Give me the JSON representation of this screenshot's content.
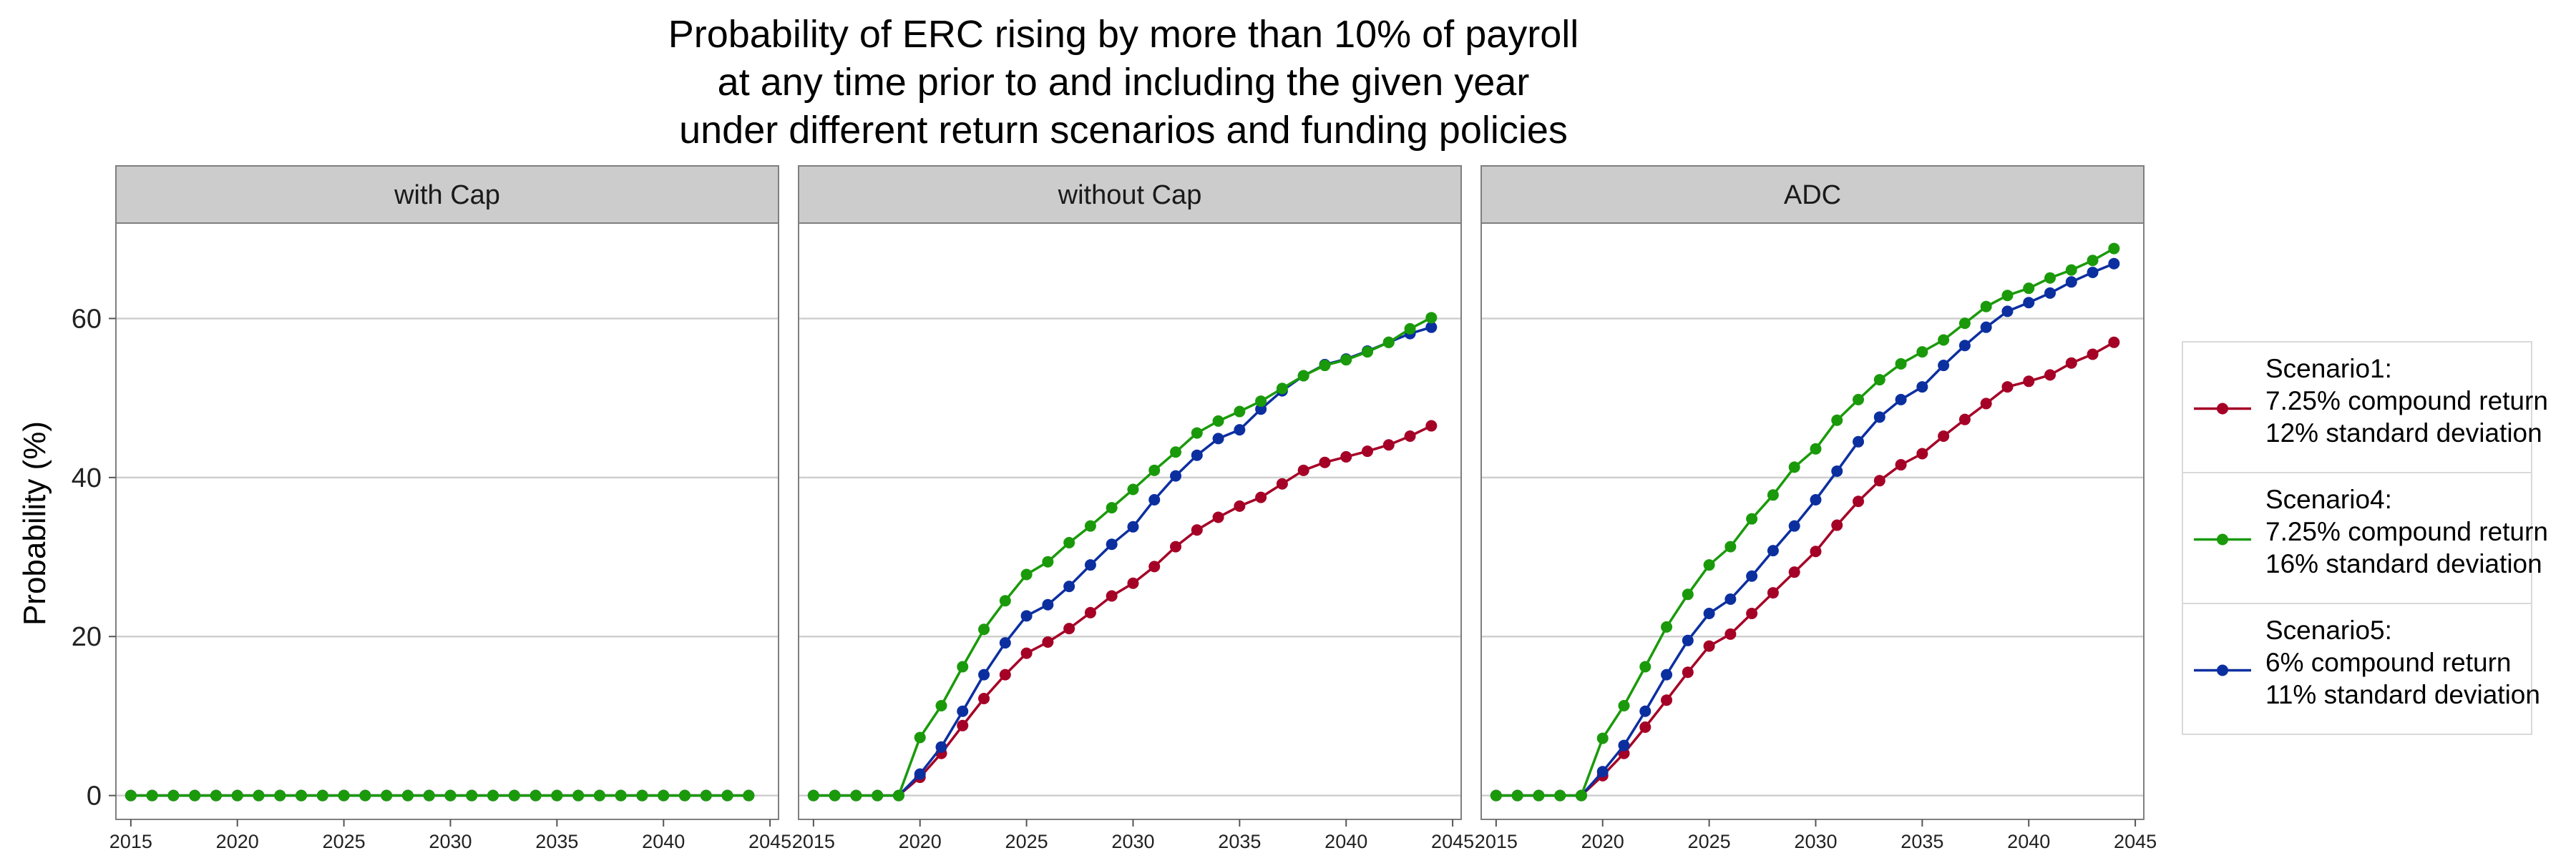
{
  "chart_data": {
    "type": "line",
    "title": [
      "Probability of ERC rising by more than 10% of payroll",
      "at any time prior to and including the given year",
      "under different return scenarios and funding policies"
    ],
    "ylabel": "Probability (%)",
    "xlabel": "",
    "xlim": [
      2014.3,
      2045.4
    ],
    "ylim": [
      -3,
      72
    ],
    "x_ticks": [
      2015,
      2020,
      2025,
      2030,
      2035,
      2040,
      2045
    ],
    "y_ticks": [
      0,
      20,
      40,
      60
    ],
    "x": [
      2015,
      2016,
      2017,
      2018,
      2019,
      2020,
      2021,
      2022,
      2023,
      2024,
      2025,
      2026,
      2027,
      2028,
      2029,
      2030,
      2031,
      2032,
      2033,
      2034,
      2035,
      2036,
      2037,
      2038,
      2039,
      2040,
      2041,
      2042,
      2043,
      2044
    ],
    "panels": [
      {
        "label": "with Cap",
        "series": [
          {
            "name": "Scenario1",
            "color": "#a50026",
            "values": [
              0,
              0,
              0,
              0,
              0,
              0,
              0,
              0,
              0,
              0,
              0,
              0,
              0,
              0,
              0,
              0,
              0,
              0,
              0,
              0,
              0,
              0,
              0,
              0,
              0,
              0,
              0,
              0,
              0,
              0
            ]
          },
          {
            "name": "Scenario5",
            "color": "#0c2fa0",
            "values": [
              0,
              0,
              0,
              0,
              0,
              0,
              0,
              0,
              0,
              0,
              0,
              0,
              0,
              0,
              0,
              0,
              0,
              0,
              0,
              0,
              0,
              0,
              0,
              0,
              0,
              0,
              0,
              0,
              0,
              0
            ]
          },
          {
            "name": "Scenario4",
            "color": "#1a9a0a",
            "values": [
              0,
              0,
              0,
              0,
              0,
              0,
              0,
              0,
              0,
              0,
              0,
              0,
              0,
              0,
              0,
              0,
              0,
              0,
              0,
              0,
              0,
              0,
              0,
              0,
              0,
              0,
              0,
              0,
              0,
              0
            ]
          }
        ]
      },
      {
        "label": "without Cap",
        "series": [
          {
            "name": "Scenario1",
            "color": "#a50026",
            "values": [
              0,
              0,
              0,
              0,
              0,
              2.3,
              5.3,
              8.8,
              12.2,
              15.2,
              17.9,
              19.3,
              21.0,
              23.0,
              25.1,
              26.7,
              28.8,
              31.3,
              33.4,
              35.0,
              36.4,
              37.5,
              39.2,
              40.9,
              41.9,
              42.6,
              43.3,
              44.1,
              45.2,
              46.5
            ]
          },
          {
            "name": "Scenario5",
            "color": "#0c2fa0",
            "values": [
              0,
              0,
              0,
              0,
              0,
              2.7,
              6.1,
              10.6,
              15.2,
              19.2,
              22.6,
              24.0,
              26.3,
              29.0,
              31.6,
              33.8,
              37.2,
              40.2,
              42.8,
              44.9,
              46.0,
              48.6,
              50.9,
              52.8,
              54.2,
              54.9,
              55.9,
              57.0,
              58.1,
              58.9
            ]
          },
          {
            "name": "Scenario4",
            "color": "#1a9a0a",
            "values": [
              0,
              0,
              0,
              0,
              0,
              7.3,
              11.3,
              16.2,
              20.9,
              24.5,
              27.8,
              29.4,
              31.8,
              33.9,
              36.2,
              38.5,
              40.9,
              43.2,
              45.6,
              47.1,
              48.3,
              49.6,
              51.2,
              52.8,
              54.1,
              54.8,
              55.8,
              57.0,
              58.7,
              60.1
            ]
          }
        ]
      },
      {
        "label": "ADC",
        "series": [
          {
            "name": "Scenario1",
            "color": "#a50026",
            "values": [
              0,
              0,
              0,
              0,
              0,
              2.5,
              5.3,
              8.6,
              12.0,
              15.5,
              18.8,
              20.3,
              22.9,
              25.5,
              28.1,
              30.7,
              34.0,
              37.0,
              39.6,
              41.6,
              43.0,
              45.2,
              47.3,
              49.3,
              51.4,
              52.1,
              52.9,
              54.4,
              55.5,
              57.0
            ]
          },
          {
            "name": "Scenario5",
            "color": "#0c2fa0",
            "values": [
              0,
              0,
              0,
              0,
              0,
              3.0,
              6.3,
              10.6,
              15.2,
              19.5,
              22.9,
              24.7,
              27.6,
              30.8,
              33.9,
              37.2,
              40.8,
              44.5,
              47.6,
              49.8,
              51.4,
              54.1,
              56.6,
              58.9,
              60.9,
              62.0,
              63.2,
              64.6,
              65.8,
              66.9
            ]
          },
          {
            "name": "Scenario4",
            "color": "#1a9a0a",
            "values": [
              0,
              0,
              0,
              0,
              0,
              7.2,
              11.3,
              16.2,
              21.2,
              25.3,
              29.0,
              31.3,
              34.8,
              37.8,
              41.3,
              43.6,
              47.2,
              49.8,
              52.3,
              54.3,
              55.8,
              57.3,
              59.4,
              61.5,
              62.9,
              63.8,
              65.1,
              66.1,
              67.3,
              68.8
            ]
          }
        ]
      }
    ],
    "legend": {
      "placement": "right",
      "entries": [
        {
          "color": "#a50026",
          "lines": [
            "Scenario1:",
            "7.25% compound return",
            "12% standard deviation"
          ]
        },
        {
          "color": "#1a9a0a",
          "lines": [
            "Scenario4:",
            "7.25% compound return",
            "16% standard deviation"
          ]
        },
        {
          "color": "#0c2fa0",
          "lines": [
            "Scenario5:",
            "6% compound return",
            "11% standard deviation"
          ]
        }
      ]
    },
    "grid": true,
    "colors": {
      "panel_border": "#7f7f7f",
      "strip_fill": "#cccccc",
      "grid": "#cfcfcf"
    }
  }
}
